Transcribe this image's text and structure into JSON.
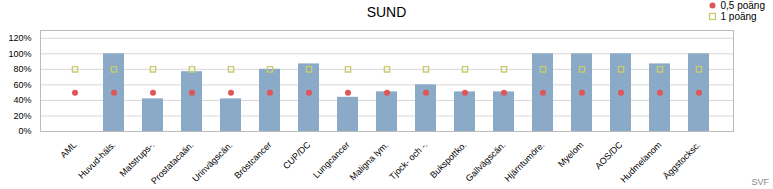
{
  "chart_data": {
    "type": "bar",
    "title": "SUND",
    "categories": [
      "AML",
      "Huvud-häls.",
      "Matstrups-.",
      "Prostatacaän.",
      "Urinvägscän.",
      "Bröstcancer",
      "CUP/DC",
      "Lungcancer",
      "Maligna lym.",
      "Tjock- och -.",
      "Bukspottko.",
      "Gallvägscän.",
      "Hjärntumöre.",
      "Myelom",
      "AOS/DC",
      "Hudmelanom",
      "Äggstocksc."
    ],
    "values": [
      0,
      100,
      42,
      77,
      42,
      80,
      87,
      44,
      51,
      60,
      51,
      51,
      100,
      100,
      100,
      87,
      100
    ],
    "color": "#8aaac8",
    "series": [
      {
        "name": "0,5 poäng",
        "type": "scatter",
        "marker": "circle",
        "color": "#e05555",
        "values": [
          50,
          50,
          50,
          50,
          50,
          50,
          50,
          50,
          50,
          50,
          50,
          50,
          50,
          50,
          50,
          50,
          50
        ]
      },
      {
        "name": "1 poäng",
        "type": "scatter",
        "marker": "square",
        "color": "#c8cc6a",
        "values": [
          80,
          80,
          80,
          80,
          80,
          80,
          80,
          80,
          80,
          80,
          80,
          80,
          80,
          80,
          80,
          80,
          80
        ]
      }
    ],
    "ylim": [
      0,
      130
    ],
    "yticks": [
      {
        "value": 0,
        "label": "0%"
      },
      {
        "value": 20,
        "label": "20%"
      },
      {
        "value": 40,
        "label": "40%"
      },
      {
        "value": 60,
        "label": "60%"
      },
      {
        "value": 80,
        "label": "80%"
      },
      {
        "value": 100,
        "label": "100%"
      },
      {
        "value": 120,
        "label": "120%"
      }
    ],
    "grid": true,
    "legend": "upper right",
    "annotations": [
      "SVF"
    ]
  }
}
